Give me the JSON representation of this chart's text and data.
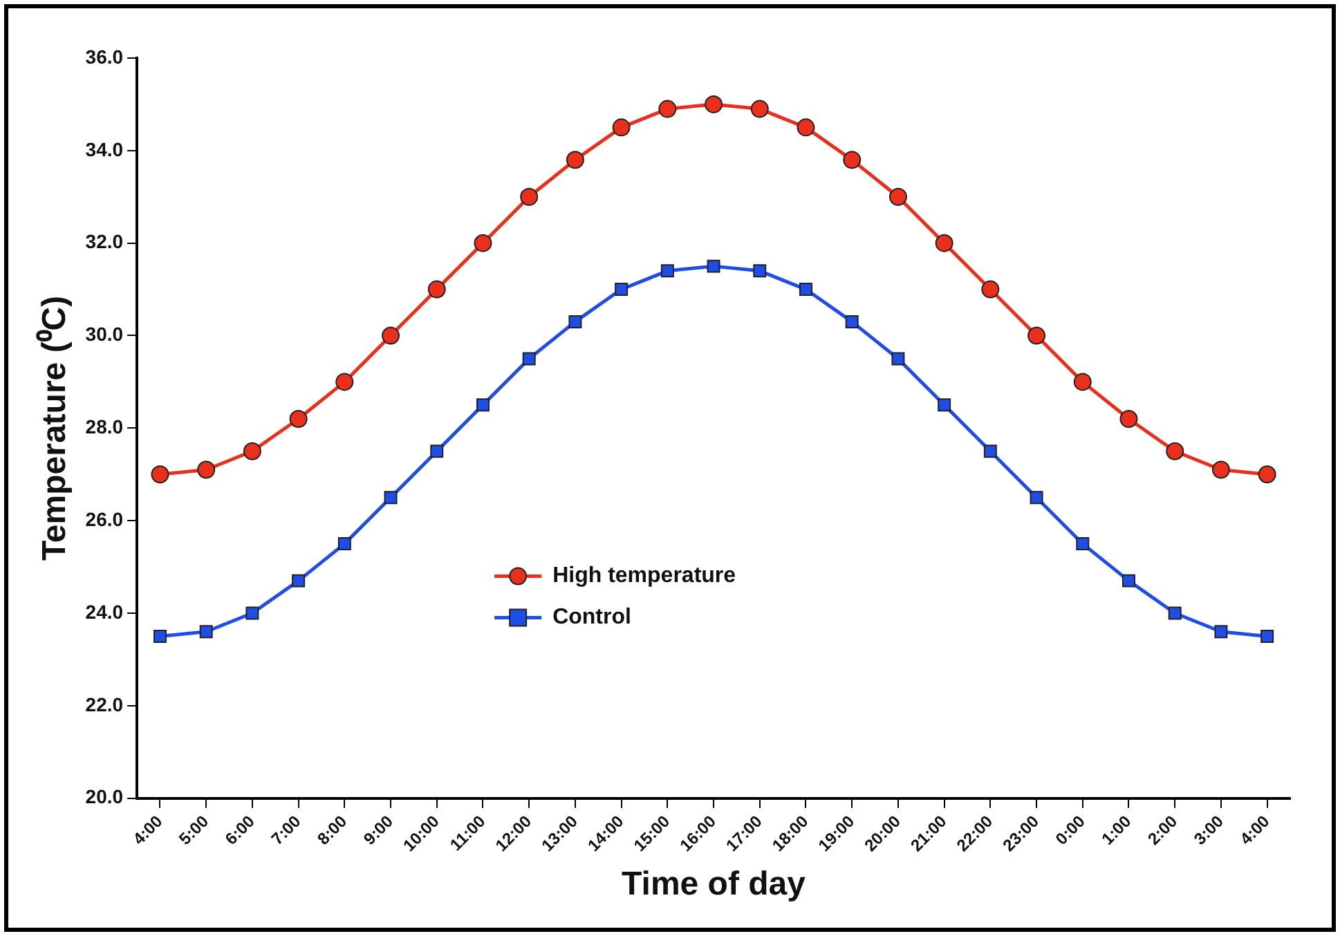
{
  "chart_data": {
    "type": "line",
    "xlabel": "Time of day",
    "ylabel": "Temperature (⁰C)",
    "categories": [
      "4:00",
      "5:00",
      "6:00",
      "7:00",
      "8:00",
      "9:00",
      "10:00",
      "11:00",
      "12:00",
      "13:00",
      "14:00",
      "15:00",
      "16:00",
      "17:00",
      "18:00",
      "19:00",
      "20:00",
      "21:00",
      "22:00",
      "23:00",
      "0:00",
      "1:00",
      "2:00",
      "3:00",
      "4:00"
    ],
    "series": [
      {
        "name": "High temperature",
        "color": "#e8301c",
        "marker": "circle",
        "values": [
          27.0,
          27.1,
          27.5,
          28.2,
          29.0,
          30.0,
          31.0,
          32.0,
          33.0,
          33.8,
          34.5,
          34.9,
          35.0,
          34.9,
          34.5,
          33.8,
          33.0,
          32.0,
          31.0,
          30.0,
          29.0,
          28.2,
          27.5,
          27.1,
          27.0
        ]
      },
      {
        "name": "Control",
        "color": "#1f4ee6",
        "marker": "square",
        "values": [
          23.5,
          23.6,
          24.0,
          24.7,
          25.5,
          26.5,
          27.5,
          28.5,
          29.5,
          30.3,
          31.0,
          31.4,
          31.5,
          31.4,
          31.0,
          30.3,
          29.5,
          28.5,
          27.5,
          26.5,
          25.5,
          24.7,
          24.0,
          23.6,
          23.5
        ]
      }
    ],
    "ylim": [
      20,
      36
    ],
    "yticks": [
      {
        "value": 20,
        "label": "20.0"
      },
      {
        "value": 22,
        "label": "22.0"
      },
      {
        "value": 24,
        "label": "24.0"
      },
      {
        "value": 26,
        "label": "26.0"
      },
      {
        "value": 28,
        "label": "28.0"
      },
      {
        "value": 30,
        "label": "30.0"
      },
      {
        "value": 32,
        "label": "32.0"
      },
      {
        "value": 34,
        "label": "34.0"
      },
      {
        "value": 36,
        "label": "36.0"
      }
    ],
    "grid": false,
    "legend": "center",
    "line_style": "solid"
  }
}
